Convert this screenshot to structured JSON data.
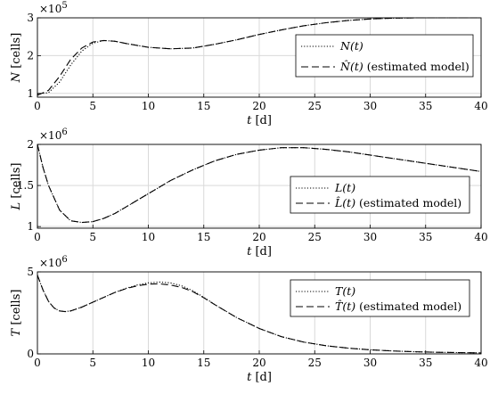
{
  "chart_data": [
    {
      "type": "line",
      "ylabel": "N",
      "ylabel_unit": "[cells]",
      "xlabel": "t",
      "xlabel_unit": "[d]",
      "y_exponent": "×10",
      "y_exponent_power": "5",
      "xlim": [
        0,
        40
      ],
      "ylim": [
        0.9,
        3.0
      ],
      "xticks": [
        0,
        5,
        10,
        15,
        20,
        25,
        30,
        35,
        40
      ],
      "yticks": [
        1,
        2,
        3
      ],
      "xtick_labels": [
        "0",
        "5",
        "10",
        "15",
        "20",
        "25",
        "30",
        "35",
        "40"
      ],
      "ytick_labels": [
        "1",
        "2",
        "3"
      ],
      "grid": true,
      "legend_position": "right",
      "series": [
        {
          "name": "N(t)",
          "legend_label": "N(t)",
          "style": "dotted",
          "x": [
            0,
            1,
            2,
            3,
            4,
            5,
            6,
            7,
            8,
            10,
            12,
            14,
            16,
            18,
            20,
            22,
            24,
            26,
            28,
            30,
            32,
            34,
            36,
            38,
            40
          ],
          "y": [
            0.98,
            1.02,
            1.3,
            1.75,
            2.12,
            2.33,
            2.4,
            2.38,
            2.32,
            2.22,
            2.18,
            2.2,
            2.3,
            2.42,
            2.56,
            2.68,
            2.79,
            2.87,
            2.93,
            2.97,
            2.99,
            3.0,
            3.0,
            3.0,
            3.0
          ]
        },
        {
          "name": "N̂(t) (estimated model)",
          "legend_label": "N̂(t)",
          "legend_suffix": "(estimated model)",
          "style": "dashed",
          "x": [
            0,
            1,
            2,
            3,
            4,
            5,
            6,
            7,
            8,
            10,
            12,
            14,
            16,
            18,
            20,
            22,
            24,
            26,
            28,
            30,
            32,
            34,
            36,
            38,
            40
          ],
          "y": [
            0.95,
            1.08,
            1.45,
            1.9,
            2.2,
            2.36,
            2.4,
            2.38,
            2.32,
            2.22,
            2.18,
            2.2,
            2.3,
            2.42,
            2.56,
            2.68,
            2.79,
            2.87,
            2.93,
            2.97,
            2.99,
            3.0,
            3.0,
            3.0,
            3.0
          ]
        }
      ]
    },
    {
      "type": "line",
      "ylabel": "L",
      "ylabel_unit": "[cells]",
      "xlabel": "t",
      "xlabel_unit": "[d]",
      "y_exponent": "×10",
      "y_exponent_power": "6",
      "xlim": [
        0,
        40
      ],
      "ylim": [
        0.98,
        2.0
      ],
      "xticks": [
        0,
        5,
        10,
        15,
        20,
        25,
        30,
        35,
        40
      ],
      "yticks": [
        1,
        1.5,
        2
      ],
      "xtick_labels": [
        "0",
        "5",
        "10",
        "15",
        "20",
        "25",
        "30",
        "35",
        "40"
      ],
      "ytick_labels": [
        "1",
        "1.5",
        "2"
      ],
      "grid": true,
      "legend_position": "right",
      "series": [
        {
          "name": "L(t)",
          "legend_label": "L(t)",
          "style": "dotted",
          "x": [
            0,
            0.5,
            1,
            2,
            3,
            4,
            5,
            6,
            7,
            8,
            10,
            12,
            14,
            16,
            18,
            20,
            22,
            24,
            26,
            28,
            30,
            32,
            34,
            36,
            38,
            40
          ],
          "y": [
            2.0,
            1.72,
            1.5,
            1.2,
            1.07,
            1.05,
            1.06,
            1.1,
            1.16,
            1.24,
            1.4,
            1.56,
            1.69,
            1.8,
            1.88,
            1.93,
            1.96,
            1.96,
            1.94,
            1.91,
            1.87,
            1.83,
            1.79,
            1.75,
            1.71,
            1.67
          ]
        },
        {
          "name": "L̂(t) (estimated model)",
          "legend_label": "L̂(t)",
          "legend_suffix": "(estimated model)",
          "style": "dashed",
          "x": [
            0,
            0.5,
            1,
            2,
            3,
            4,
            5,
            6,
            7,
            8,
            10,
            12,
            14,
            16,
            18,
            20,
            22,
            24,
            26,
            28,
            30,
            32,
            34,
            36,
            38,
            40
          ],
          "y": [
            2.0,
            1.72,
            1.5,
            1.2,
            1.07,
            1.05,
            1.06,
            1.1,
            1.16,
            1.24,
            1.4,
            1.56,
            1.69,
            1.8,
            1.88,
            1.93,
            1.96,
            1.96,
            1.94,
            1.91,
            1.87,
            1.83,
            1.79,
            1.75,
            1.71,
            1.67
          ]
        }
      ]
    },
    {
      "type": "line",
      "ylabel": "T",
      "ylabel_unit": "[cells]",
      "xlabel": "t",
      "xlabel_unit": "[d]",
      "y_exponent": "×10",
      "y_exponent_power": "6",
      "xlim": [
        0,
        40
      ],
      "ylim": [
        0,
        5
      ],
      "xticks": [
        0,
        5,
        10,
        15,
        20,
        25,
        30,
        35,
        40
      ],
      "yticks": [
        0,
        5
      ],
      "xtick_labels": [
        "0",
        "5",
        "10",
        "15",
        "20",
        "25",
        "30",
        "35",
        "40"
      ],
      "ytick_labels": [
        "0",
        "5"
      ],
      "grid": true,
      "legend_position": "top-right",
      "series": [
        {
          "name": "T(t)",
          "legend_label": "T(t)",
          "style": "dotted",
          "x": [
            0,
            0.5,
            1,
            1.5,
            2,
            2.5,
            3,
            4,
            5,
            6,
            7,
            8,
            9,
            10,
            11,
            12,
            13,
            14,
            15,
            16,
            18,
            20,
            22,
            24,
            26,
            28,
            30,
            32,
            34,
            36,
            38,
            40
          ],
          "y": [
            4.8,
            3.9,
            3.2,
            2.8,
            2.62,
            2.58,
            2.62,
            2.85,
            3.15,
            3.45,
            3.75,
            4.0,
            4.2,
            4.33,
            4.38,
            4.33,
            4.15,
            3.85,
            3.45,
            3.0,
            2.2,
            1.55,
            1.05,
            0.72,
            0.5,
            0.35,
            0.25,
            0.18,
            0.13,
            0.1,
            0.08,
            0.06
          ]
        },
        {
          "name": "T̂(t) (estimated model)",
          "legend_label": "T̂(t)",
          "legend_suffix": "(estimated model)",
          "style": "dashed",
          "x": [
            0,
            0.5,
            1,
            1.5,
            2,
            2.5,
            3,
            4,
            5,
            6,
            7,
            8,
            9,
            10,
            11,
            12,
            13,
            14,
            15,
            16,
            18,
            20,
            22,
            24,
            26,
            28,
            30,
            32,
            34,
            36,
            38,
            40
          ],
          "y": [
            4.8,
            3.9,
            3.2,
            2.8,
            2.62,
            2.58,
            2.62,
            2.85,
            3.15,
            3.45,
            3.75,
            3.98,
            4.15,
            4.25,
            4.27,
            4.2,
            4.05,
            3.8,
            3.42,
            3.0,
            2.2,
            1.55,
            1.05,
            0.72,
            0.5,
            0.35,
            0.25,
            0.18,
            0.13,
            0.1,
            0.08,
            0.06
          ]
        }
      ]
    }
  ]
}
